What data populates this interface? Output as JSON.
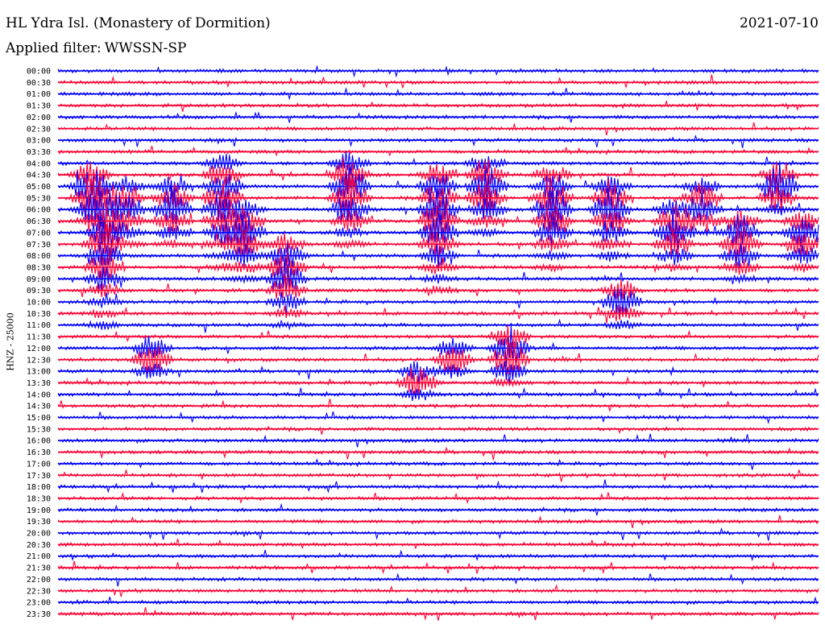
{
  "header": {
    "station": "HL Ydra Isl. (Monastery of Dormition)",
    "date": "2021-07-10",
    "filter_label": "Applied filter:",
    "filter_value": "WWSSN-SP"
  },
  "axis_label": "HNZ - 25000",
  "colors": {
    "odd": "#0000ff",
    "even": "#ff0033"
  },
  "chart_data": {
    "type": "line",
    "title": "HL Ydra Isl. (Monastery of Dormition)",
    "channel": "HNZ",
    "scale": 25000,
    "y_ticks": [
      "00:00",
      "00:30",
      "01:00",
      "01:30",
      "02:00",
      "02:30",
      "03:00",
      "03:30",
      "04:00",
      "04:30",
      "05:00",
      "05:30",
      "06:00",
      "06:30",
      "07:00",
      "07:30",
      "08:00",
      "08:30",
      "09:00",
      "09:30",
      "10:00",
      "10:30",
      "11:00",
      "11:30",
      "12:00",
      "12:30",
      "13:00",
      "13:30",
      "14:00",
      "14:30",
      "15:00",
      "15:30",
      "16:00",
      "16:30",
      "17:00",
      "17:30",
      "18:00",
      "18:30",
      "19:00",
      "19:30",
      "20:00",
      "20:30",
      "21:00",
      "21:30",
      "22:00",
      "22:30",
      "23:00",
      "23:30"
    ],
    "x_range_minutes": [
      0,
      30
    ],
    "series_colors": [
      "#0000ff",
      "#ff0033"
    ],
    "events": [
      {
        "minute": 1.3,
        "start": "04:30",
        "end": "06:30",
        "amplitude": 40
      },
      {
        "minute": 1.8,
        "start": "05:30",
        "end": "11:00",
        "amplitude": 35
      },
      {
        "minute": 2.7,
        "start": "05:00",
        "end": "07:30",
        "amplitude": 30
      },
      {
        "minute": 3.7,
        "start": "12:00",
        "end": "13:00",
        "amplitude": 32
      },
      {
        "minute": 4.5,
        "start": "05:00",
        "end": "07:30",
        "amplitude": 30
      },
      {
        "minute": 6.5,
        "start": "04:00",
        "end": "08:30",
        "amplitude": 35
      },
      {
        "minute": 7.4,
        "start": "06:00",
        "end": "09:00",
        "amplitude": 30
      },
      {
        "minute": 9.0,
        "start": "07:30",
        "end": "11:00",
        "amplitude": 35
      },
      {
        "minute": 11.5,
        "start": "04:00",
        "end": "07:30",
        "amplitude": 40
      },
      {
        "minute": 14.2,
        "start": "13:00",
        "end": "14:00",
        "amplitude": 30
      },
      {
        "minute": 15.0,
        "start": "04:30",
        "end": "09:30",
        "amplitude": 40
      },
      {
        "minute": 15.6,
        "start": "12:00",
        "end": "13:00",
        "amplitude": 30
      },
      {
        "minute": 16.9,
        "start": "04:00",
        "end": "07:00",
        "amplitude": 35
      },
      {
        "minute": 17.8,
        "start": "11:30",
        "end": "13:30",
        "amplitude": 40
      },
      {
        "minute": 19.5,
        "start": "04:30",
        "end": "08:30",
        "amplitude": 35
      },
      {
        "minute": 21.8,
        "start": "05:00",
        "end": "08:00",
        "amplitude": 35
      },
      {
        "minute": 22.2,
        "start": "09:30",
        "end": "11:00",
        "amplitude": 28
      },
      {
        "minute": 24.3,
        "start": "06:00",
        "end": "08:30",
        "amplitude": 35
      },
      {
        "minute": 25.4,
        "start": "05:00",
        "end": "07:00",
        "amplitude": 30
      },
      {
        "minute": 26.9,
        "start": "06:30",
        "end": "09:00",
        "amplitude": 32
      },
      {
        "minute": 28.4,
        "start": "04:30",
        "end": "06:00",
        "amplitude": 40
      },
      {
        "minute": 29.4,
        "start": "06:30",
        "end": "08:30",
        "amplitude": 35
      }
    ]
  }
}
